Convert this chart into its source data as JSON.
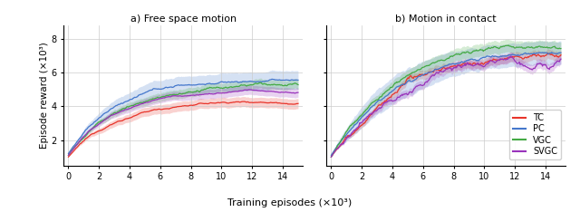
{
  "title_left": "a) Free space motion",
  "title_right": "b) Motion in contact",
  "xlabel": "Training episodes (×10³)",
  "ylabel": "Episode reward (×10³)",
  "x_ticks": [
    0,
    2,
    4,
    6,
    8,
    10,
    12,
    14
  ],
  "ylim": [
    0.5,
    8.8
  ],
  "y_ticks": [
    2,
    4,
    6,
    8
  ],
  "n_points": 300,
  "x_max": 15,
  "colors": {
    "TC": "#e8342a",
    "PC": "#4477cc",
    "VGC": "#44aa44",
    "SVGC": "#9933bb"
  },
  "legend_labels": [
    "TC",
    "PC",
    "VGC",
    "SVGC"
  ],
  "free_space": {
    "TC": {
      "start": 1.0,
      "end": 4.4,
      "rate": 4.5,
      "std": 0.3
    },
    "PC": {
      "start": 1.2,
      "end": 5.45,
      "rate": 5.0,
      "std": 0.55
    },
    "VGC": {
      "start": 1.1,
      "end": 5.2,
      "rate": 4.8,
      "std": 0.28
    },
    "SVGC": {
      "start": 1.1,
      "end": 5.1,
      "rate": 4.6,
      "std": 0.28
    }
  },
  "contact": {
    "TC": {
      "start": 1.0,
      "end": 7.1,
      "rate": 3.5,
      "std": 0.28
    },
    "PC": {
      "start": 1.1,
      "end": 7.0,
      "rate": 3.5,
      "std": 0.7
    },
    "VGC": {
      "start": 1.0,
      "end": 7.55,
      "rate": 3.5,
      "std": 0.38
    },
    "SVGC": {
      "start": 1.0,
      "end": 6.95,
      "rate": 3.5,
      "std": 0.28
    }
  }
}
